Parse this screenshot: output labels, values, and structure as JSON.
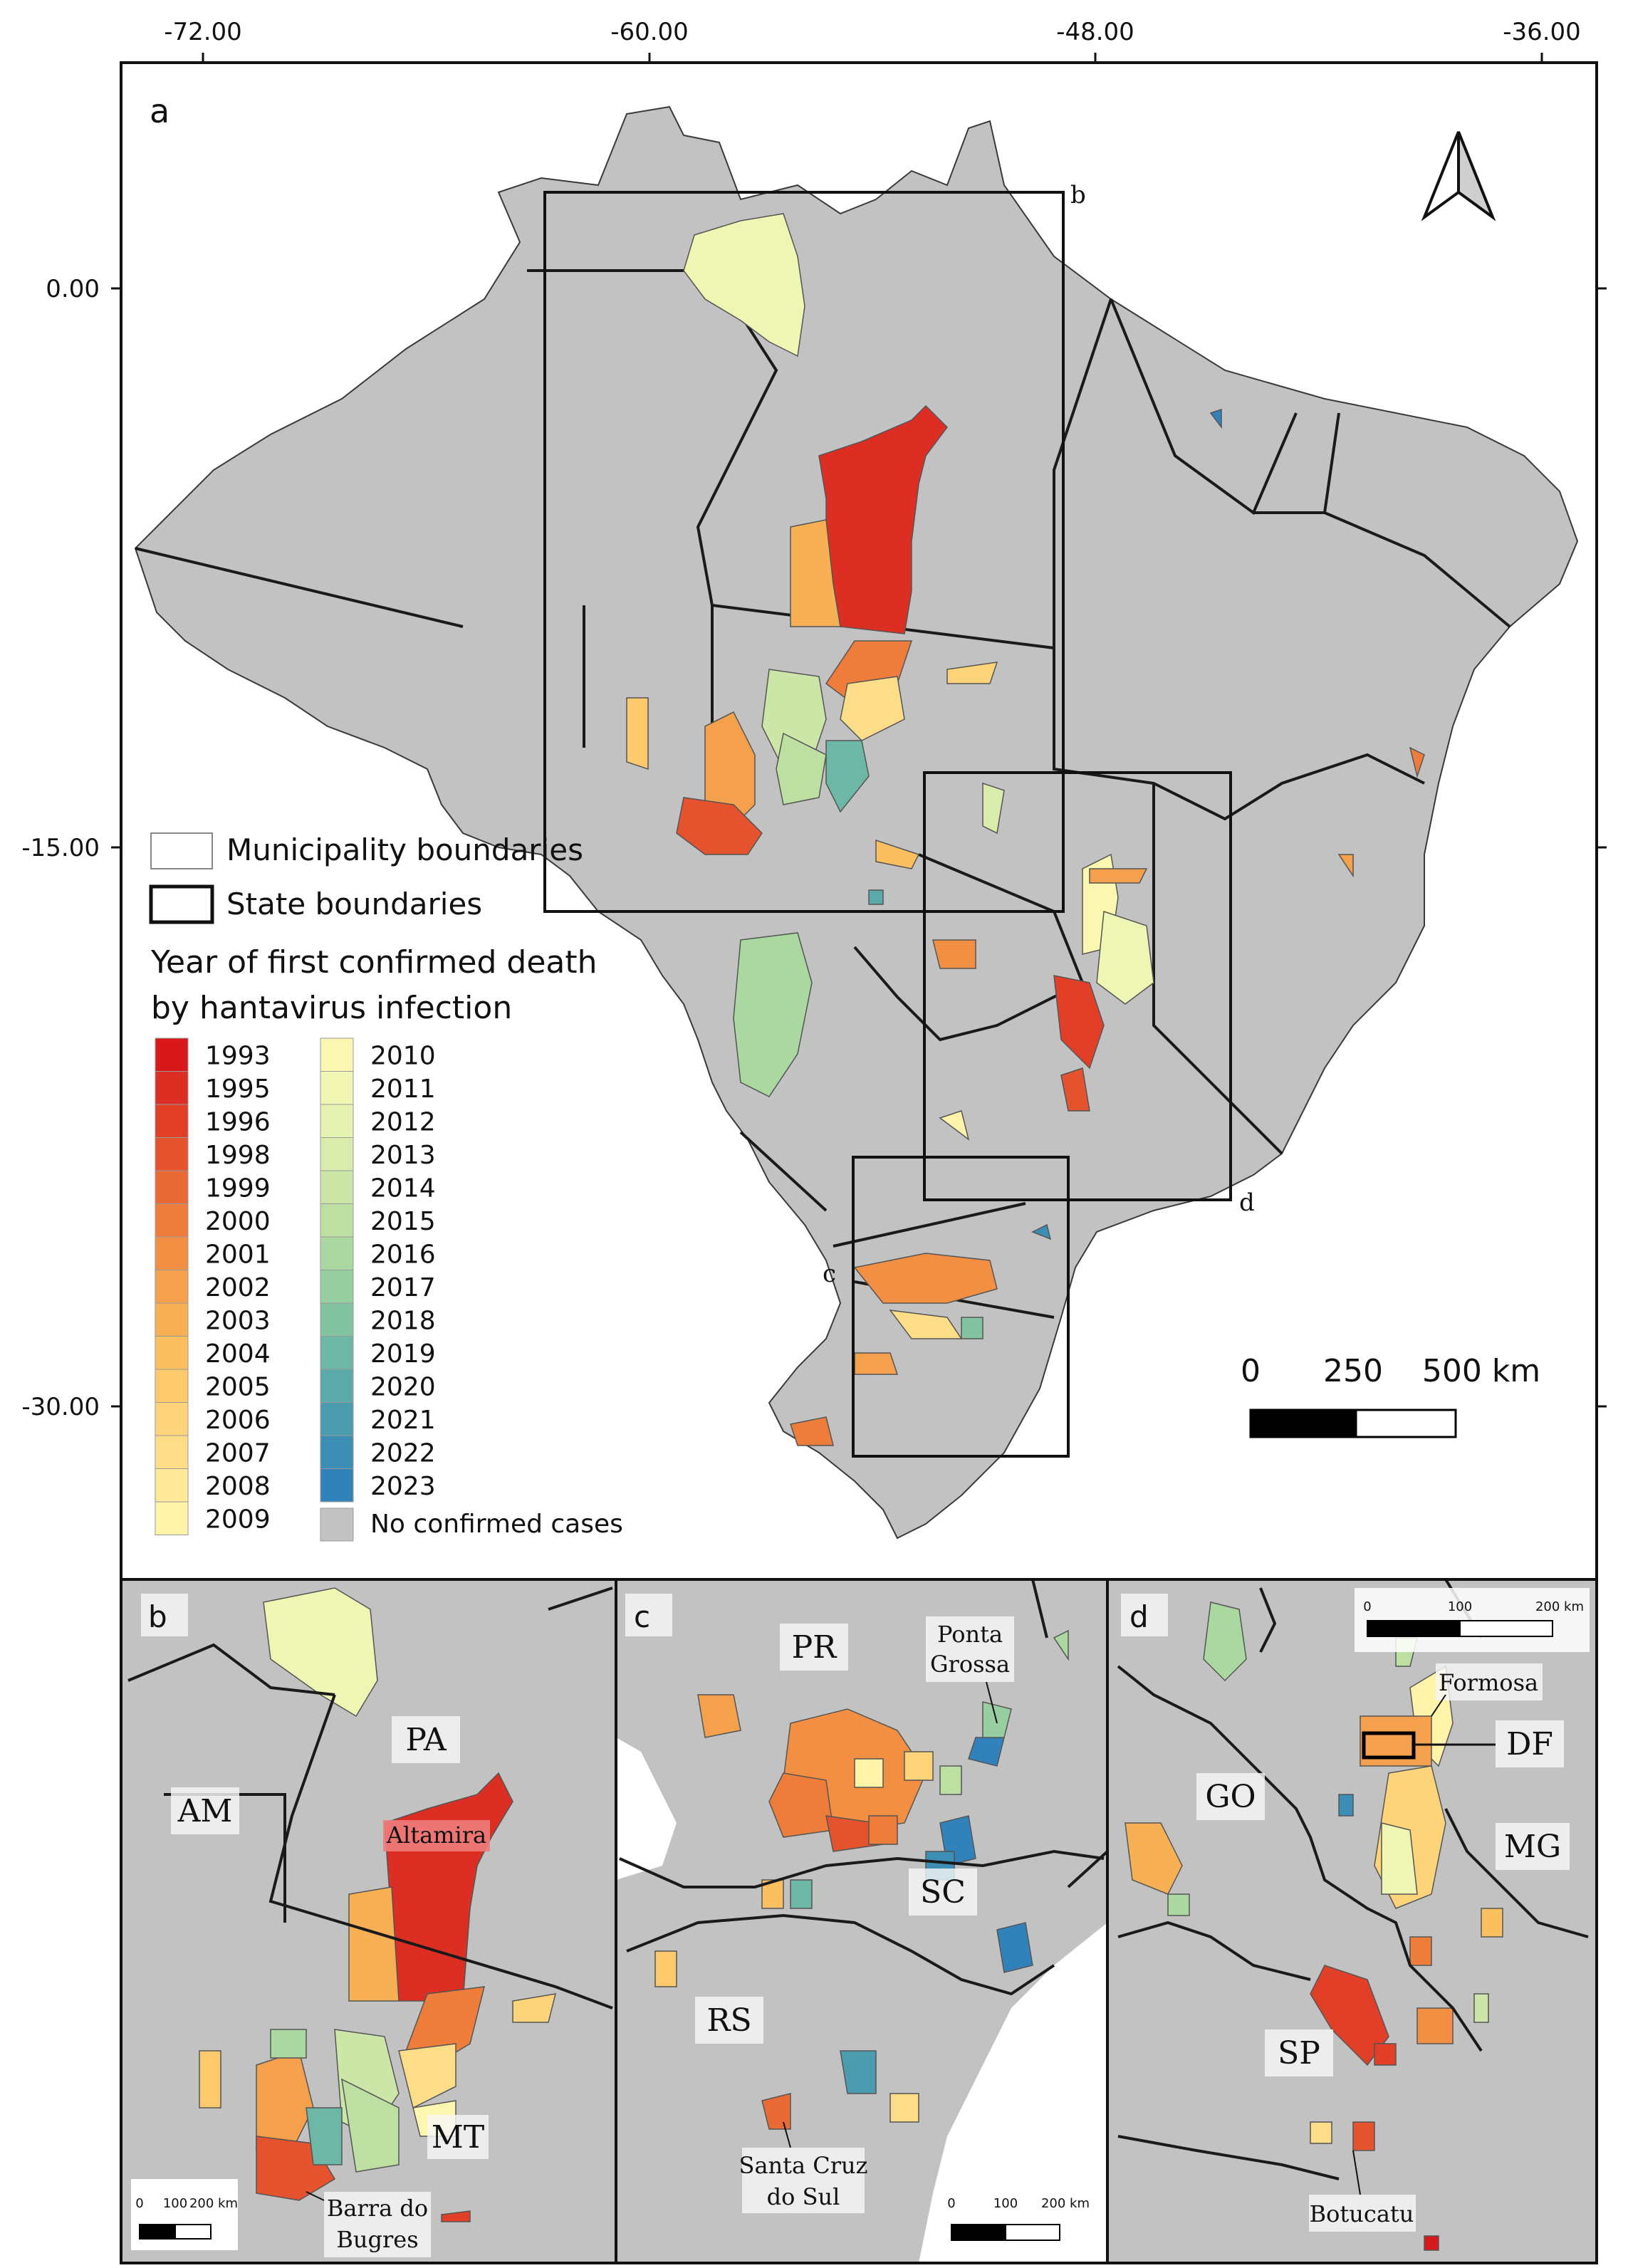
{
  "panel_a": {
    "label": "a",
    "x_ticks": [
      "-72.00",
      "-60.00",
      "-48.00",
      "-36.00"
    ],
    "y_ticks": [
      "0.00",
      "-15.00",
      "-30.00"
    ],
    "inset_labels": [
      "b",
      "c",
      "d"
    ],
    "scale_bar": {
      "labels": [
        "0",
        "250",
        "500 km"
      ]
    },
    "north_arrow": "north-arrow-icon"
  },
  "legend": {
    "boundary_items": [
      {
        "label": "Municipality boundaries"
      },
      {
        "label": "State boundaries"
      }
    ],
    "title_line1": "Year of first confirmed death",
    "title_line2": "by hantavirus infection",
    "years_col1": [
      "1993",
      "1995",
      "1996",
      "1998",
      "1999",
      "2000",
      "2001",
      "2002",
      "2003",
      "2004",
      "2005",
      "2006",
      "2007",
      "2008",
      "2009"
    ],
    "years_col2": [
      "2010",
      "2011",
      "2012",
      "2013",
      "2014",
      "2015",
      "2016",
      "2017",
      "2018",
      "2019",
      "2020",
      "2021",
      "2022",
      "2023"
    ],
    "colors_col1": [
      "#d7191c",
      "#dc2e22",
      "#e13f28",
      "#e5532e",
      "#ea6a35",
      "#ee7d3b",
      "#f28f43",
      "#f5a04c",
      "#f8b055",
      "#fbbf60",
      "#fcca6c",
      "#fdd47a",
      "#fedd88",
      "#feea98",
      "#fff3aa"
    ],
    "colors_col2": [
      "#fbf7b0",
      "#f1f7b3",
      "#e6f2b1",
      "#d9ecab",
      "#cbe6a6",
      "#bde0a2",
      "#aad8a0",
      "#97cfa0",
      "#82c4a2",
      "#6cb7a6",
      "#5aaaa9",
      "#4a9cae",
      "#3d8eb4",
      "#3182bb"
    ],
    "no_cases_label": "No confirmed cases",
    "no_cases_color": "#c2c2c2"
  },
  "panel_b": {
    "label": "b",
    "place_labels": [
      "AM",
      "PA",
      "Altamira",
      "MT",
      "Barra do",
      "Bugres"
    ],
    "scale_labels": [
      "0",
      "100",
      "200 km"
    ]
  },
  "panel_c": {
    "label": "c",
    "place_labels": [
      "PR",
      "Ponta",
      "Grossa",
      "SC",
      "RS",
      "Santa Cruz",
      "do Sul"
    ],
    "scale_labels": [
      "0",
      "100",
      "200 km"
    ]
  },
  "panel_d": {
    "label": "d",
    "place_labels": [
      "Formosa",
      "DF",
      "GO",
      "MG",
      "SP",
      "Botucatu"
    ],
    "scale_labels": [
      "0",
      "100",
      "200 km"
    ]
  }
}
